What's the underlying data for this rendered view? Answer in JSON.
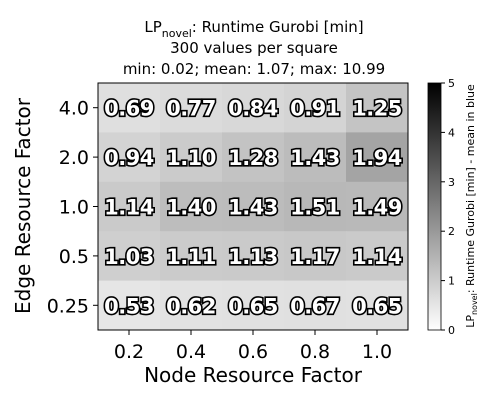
{
  "chart_data": {
    "type": "heatmap",
    "title": {
      "line1_main": "LP",
      "line1_sub": "novel",
      "line1_rest": ": Runtime Gurobi [min]",
      "line2": "300 values per square",
      "line3": "min: 0.02; mean: 1.07; max: 10.99"
    },
    "xlabel": "Node Resource Factor",
    "ylabel": "Edge Resource Factor",
    "x_categories": [
      "0.2",
      "0.4",
      "0.6",
      "0.8",
      "1.0"
    ],
    "y_categories": [
      "4.0",
      "2.0",
      "1.0",
      "0.5",
      "0.25"
    ],
    "values": [
      [
        0.69,
        0.77,
        0.84,
        0.91,
        1.25
      ],
      [
        0.94,
        1.1,
        1.28,
        1.43,
        1.94
      ],
      [
        1.14,
        1.4,
        1.43,
        1.51,
        1.49
      ],
      [
        1.03,
        1.11,
        1.13,
        1.17,
        1.14
      ],
      [
        0.53,
        0.62,
        0.65,
        0.67,
        0.65
      ]
    ],
    "cell_labels": [
      [
        "0.69",
        "0.77",
        "0.84",
        "0.91",
        "1.25"
      ],
      [
        "0.94",
        "1.10",
        "1.28",
        "1.43",
        "1.94"
      ],
      [
        "1.14",
        "1.40",
        "1.43",
        "1.51",
        "1.49"
      ],
      [
        "1.03",
        "1.11",
        "1.13",
        "1.17",
        "1.14"
      ],
      [
        "0.53",
        "0.62",
        "0.65",
        "0.67",
        "0.65"
      ]
    ],
    "colorbar": {
      "range": [
        0,
        5
      ],
      "ticks": [
        "0",
        "1",
        "2",
        "3",
        "4",
        "5"
      ],
      "label_main": "LP",
      "label_sub": "novel",
      "label_rest": ": Runtime Gurobi [min] - mean in blue",
      "colormap": "Greys"
    },
    "grid": false
  }
}
